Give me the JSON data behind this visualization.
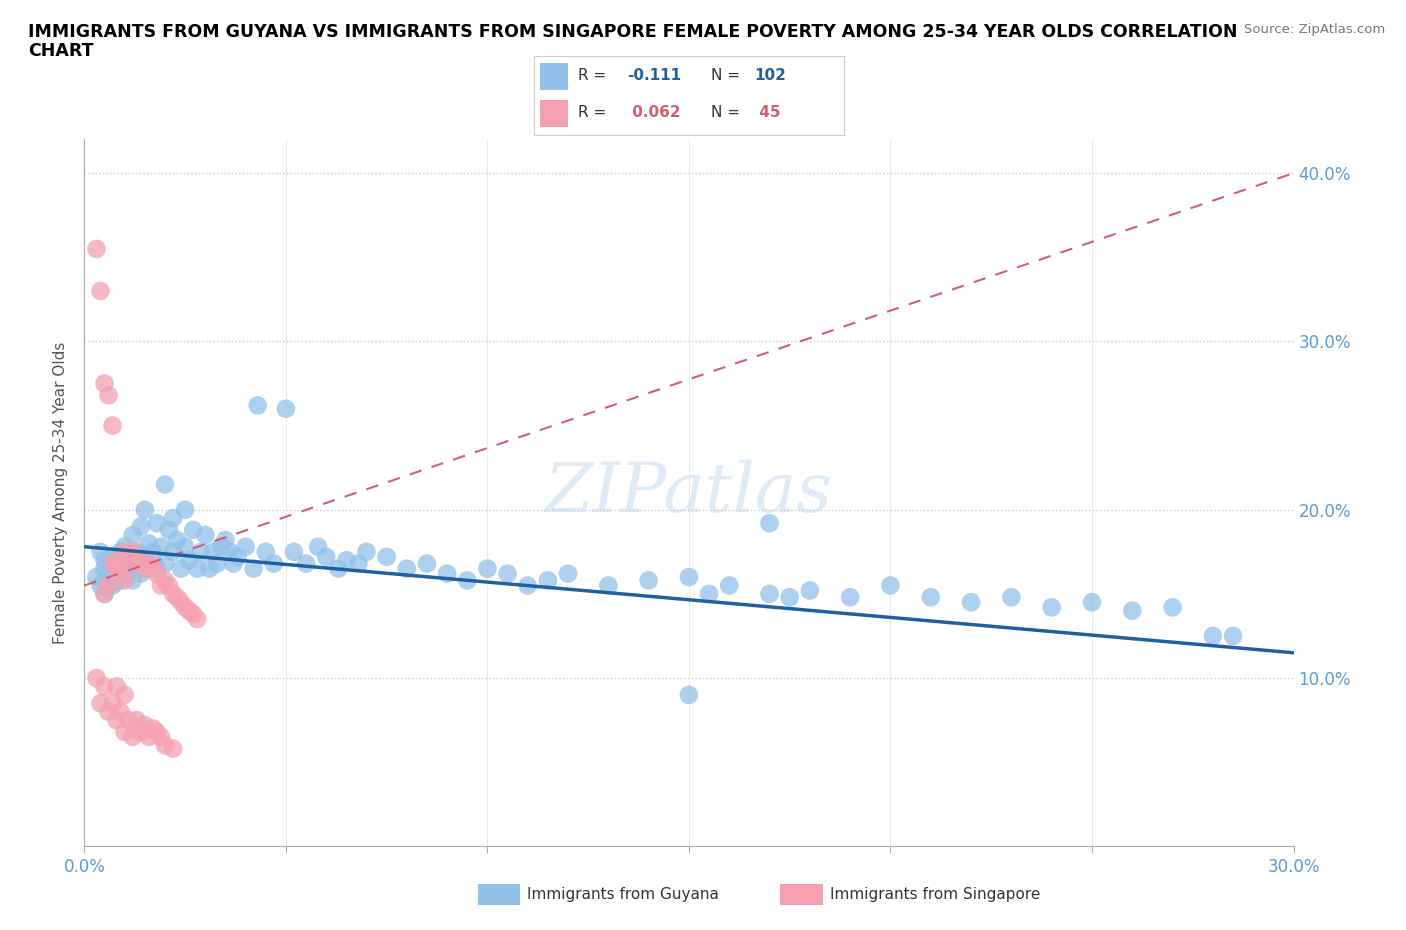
{
  "title_line1": "IMMIGRANTS FROM GUYANA VS IMMIGRANTS FROM SINGAPORE FEMALE POVERTY AMONG 25-34 YEAR OLDS CORRELATION",
  "title_line2": "CHART",
  "source_text": "Source: ZipAtlas.com",
  "ylabel": "Female Poverty Among 25-34 Year Olds",
  "xlim": [
    0.0,
    0.3
  ],
  "ylim": [
    0.0,
    0.42
  ],
  "xticks": [
    0.0,
    0.05,
    0.1,
    0.15,
    0.2,
    0.25,
    0.3
  ],
  "xticklabels": [
    "0.0%",
    "",
    "",
    "",
    "",
    "",
    "30.0%"
  ],
  "yticks": [
    0.0,
    0.1,
    0.2,
    0.3,
    0.4
  ],
  "yticklabels": [
    "",
    "10.0%",
    "20.0%",
    "30.0%",
    "40.0%"
  ],
  "guyana_color": "#92C1E9",
  "singapore_color": "#F4A0B0",
  "guyana_line_color": "#2060A0",
  "singapore_line_color": "#D06070",
  "watermark_color": "#C8DCF0",
  "guyana_R": -0.111,
  "guyana_N": 102,
  "singapore_R": 0.062,
  "singapore_N": 45,
  "watermark": "ZIPatlas",
  "legend_label_guyana": "Immigrants from Guyana",
  "legend_label_singapore": "Immigrants from Singapore",
  "guyana_x": [
    0.003,
    0.004,
    0.004,
    0.005,
    0.005,
    0.005,
    0.006,
    0.006,
    0.007,
    0.007,
    0.007,
    0.008,
    0.008,
    0.008,
    0.009,
    0.009,
    0.01,
    0.01,
    0.01,
    0.011,
    0.011,
    0.012,
    0.012,
    0.013,
    0.013,
    0.014,
    0.014,
    0.015,
    0.015,
    0.016,
    0.016,
    0.017,
    0.018,
    0.018,
    0.019,
    0.02,
    0.02,
    0.021,
    0.022,
    0.022,
    0.023,
    0.024,
    0.025,
    0.025,
    0.026,
    0.027,
    0.028,
    0.029,
    0.03,
    0.031,
    0.032,
    0.033,
    0.034,
    0.035,
    0.036,
    0.037,
    0.038,
    0.04,
    0.042,
    0.043,
    0.045,
    0.047,
    0.05,
    0.052,
    0.055,
    0.058,
    0.06,
    0.063,
    0.065,
    0.068,
    0.07,
    0.075,
    0.08,
    0.085,
    0.09,
    0.095,
    0.1,
    0.105,
    0.11,
    0.115,
    0.12,
    0.13,
    0.14,
    0.15,
    0.155,
    0.16,
    0.17,
    0.175,
    0.18,
    0.19,
    0.2,
    0.21,
    0.22,
    0.23,
    0.24,
    0.25,
    0.26,
    0.27,
    0.28,
    0.285,
    0.17,
    0.15
  ],
  "guyana_y": [
    0.16,
    0.175,
    0.155,
    0.165,
    0.15,
    0.17,
    0.158,
    0.162,
    0.168,
    0.155,
    0.172,
    0.163,
    0.157,
    0.17,
    0.165,
    0.175,
    0.168,
    0.16,
    0.178,
    0.165,
    0.172,
    0.185,
    0.158,
    0.175,
    0.168,
    0.19,
    0.162,
    0.2,
    0.172,
    0.18,
    0.168,
    0.175,
    0.192,
    0.165,
    0.178,
    0.215,
    0.168,
    0.188,
    0.175,
    0.195,
    0.182,
    0.165,
    0.2,
    0.178,
    0.17,
    0.188,
    0.165,
    0.175,
    0.185,
    0.165,
    0.175,
    0.168,
    0.178,
    0.182,
    0.175,
    0.168,
    0.172,
    0.178,
    0.165,
    0.262,
    0.175,
    0.168,
    0.26,
    0.175,
    0.168,
    0.178,
    0.172,
    0.165,
    0.17,
    0.168,
    0.175,
    0.172,
    0.165,
    0.168,
    0.162,
    0.158,
    0.165,
    0.162,
    0.155,
    0.158,
    0.162,
    0.155,
    0.158,
    0.16,
    0.15,
    0.155,
    0.15,
    0.148,
    0.152,
    0.148,
    0.155,
    0.148,
    0.145,
    0.148,
    0.142,
    0.145,
    0.14,
    0.142,
    0.125,
    0.125,
    0.192,
    0.09
  ],
  "singapore_x": [
    0.003,
    0.004,
    0.005,
    0.005,
    0.006,
    0.006,
    0.007,
    0.007,
    0.008,
    0.008,
    0.008,
    0.009,
    0.009,
    0.01,
    0.01,
    0.01,
    0.011,
    0.011,
    0.012,
    0.012,
    0.013,
    0.013,
    0.014,
    0.014,
    0.015,
    0.015,
    0.016,
    0.016,
    0.017,
    0.017,
    0.018,
    0.018,
    0.019,
    0.019,
    0.02,
    0.02,
    0.021,
    0.022,
    0.022,
    0.023,
    0.024,
    0.025,
    0.026,
    0.027,
    0.028
  ],
  "singapore_y": [
    0.1,
    0.085,
    0.15,
    0.095,
    0.155,
    0.08,
    0.168,
    0.085,
    0.165,
    0.095,
    0.075,
    0.17,
    0.08,
    0.175,
    0.09,
    0.068,
    0.172,
    0.075,
    0.175,
    0.065,
    0.168,
    0.075,
    0.17,
    0.068,
    0.165,
    0.072,
    0.168,
    0.065,
    0.165,
    0.07,
    0.162,
    0.068,
    0.155,
    0.065,
    0.158,
    0.06,
    0.155,
    0.15,
    0.058,
    0.148,
    0.145,
    0.142,
    0.14,
    0.138,
    0.135
  ],
  "singapore_extra_x": [
    0.003,
    0.004,
    0.005,
    0.006,
    0.007,
    0.008,
    0.009,
    0.01
  ],
  "singapore_extra_y": [
    0.355,
    0.33,
    0.275,
    0.268,
    0.25,
    0.168,
    0.162,
    0.158
  ]
}
